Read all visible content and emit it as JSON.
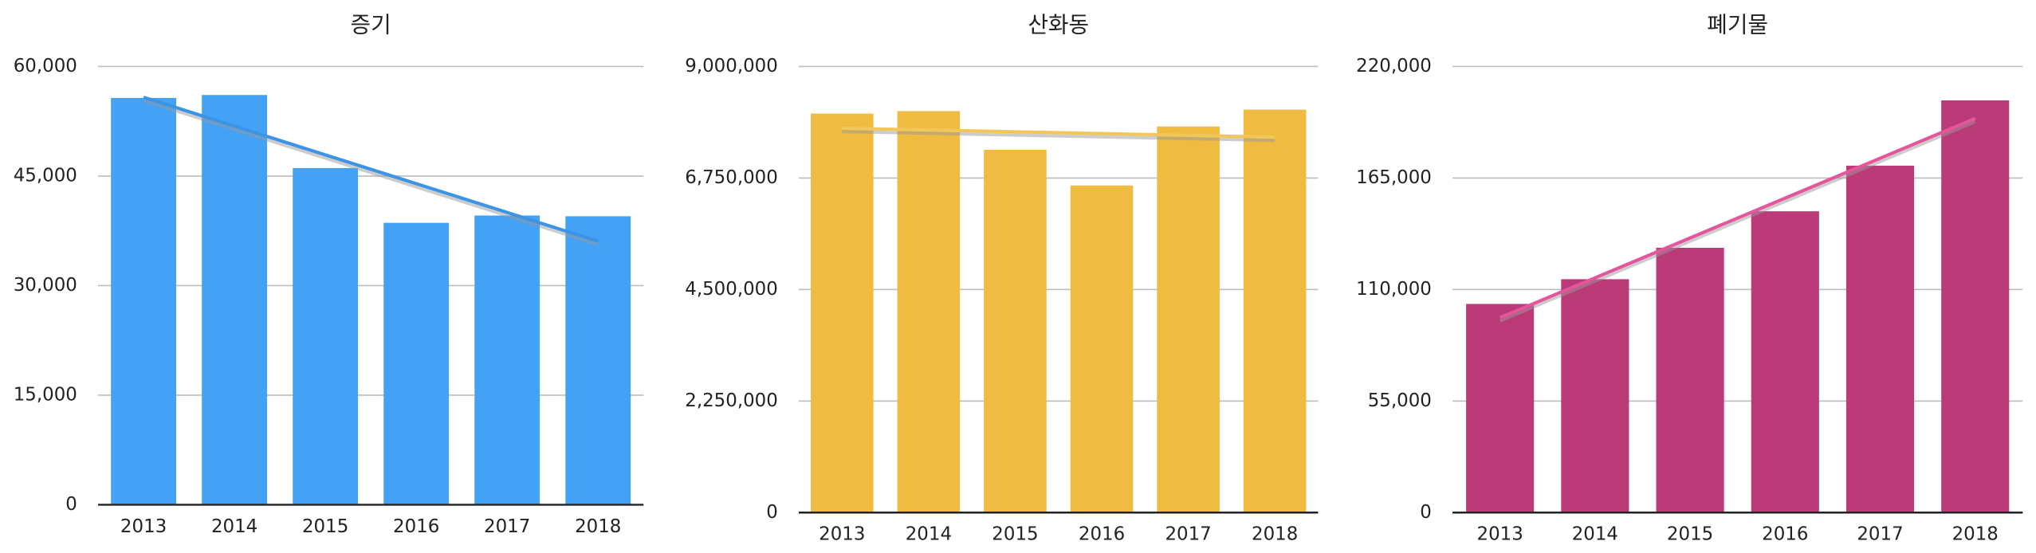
{
  "chart_data": [
    {
      "type": "bar",
      "title": "증기",
      "categories": [
        "2013",
        "2014",
        "2015",
        "2016",
        "2017",
        "2018"
      ],
      "values": [
        55700,
        56100,
        46100,
        38600,
        39600,
        39500
      ],
      "color": "#43a2f6",
      "trendline": true,
      "trendline_color": "#3b94e6",
      "ylim": [
        0,
        60000
      ],
      "yticks": [
        0,
        {
          "value": 15000,
          "label": "15,000"
        },
        {
          "value": 30000,
          "label": "30,000"
        },
        {
          "value": 45000,
          "label": "45,000"
        },
        {
          "value": 60000,
          "label": "60,000"
        }
      ],
      "grid": true
    },
    {
      "type": "bar",
      "title": "산화동",
      "categories": [
        "2013",
        "2014",
        "2015",
        "2016",
        "2017",
        "2018"
      ],
      "values": [
        8050000,
        8100000,
        7320000,
        6600000,
        7790000,
        8130000
      ],
      "color": "#efbb40",
      "trendline": true,
      "trendline_color": "#f2c75a",
      "ylim": [
        0,
        9000000
      ],
      "yticks": [
        0,
        {
          "value": 2250000,
          "label": "2,250,000"
        },
        {
          "value": 4500000,
          "label": "4,500,000"
        },
        {
          "value": 6750000,
          "label": "6,750,000"
        },
        {
          "value": 9000000,
          "label": "9,000,000"
        }
      ],
      "grid": true
    },
    {
      "type": "bar",
      "title": "폐기물",
      "categories": [
        "2013",
        "2014",
        "2015",
        "2016",
        "2017",
        "2018"
      ],
      "values": [
        102900,
        115100,
        130600,
        148600,
        171100,
        203300
      ],
      "color": "#bb3a78",
      "trendline": true,
      "trendline_color": "#e5559c",
      "ylim": [
        0,
        220000
      ],
      "yticks": [
        0,
        {
          "value": 55000,
          "label": "55,000"
        },
        {
          "value": 110000,
          "label": "110,000"
        },
        {
          "value": 165000,
          "label": "165,000"
        },
        {
          "value": 220000,
          "label": "220,000"
        }
      ],
      "grid": true
    }
  ]
}
